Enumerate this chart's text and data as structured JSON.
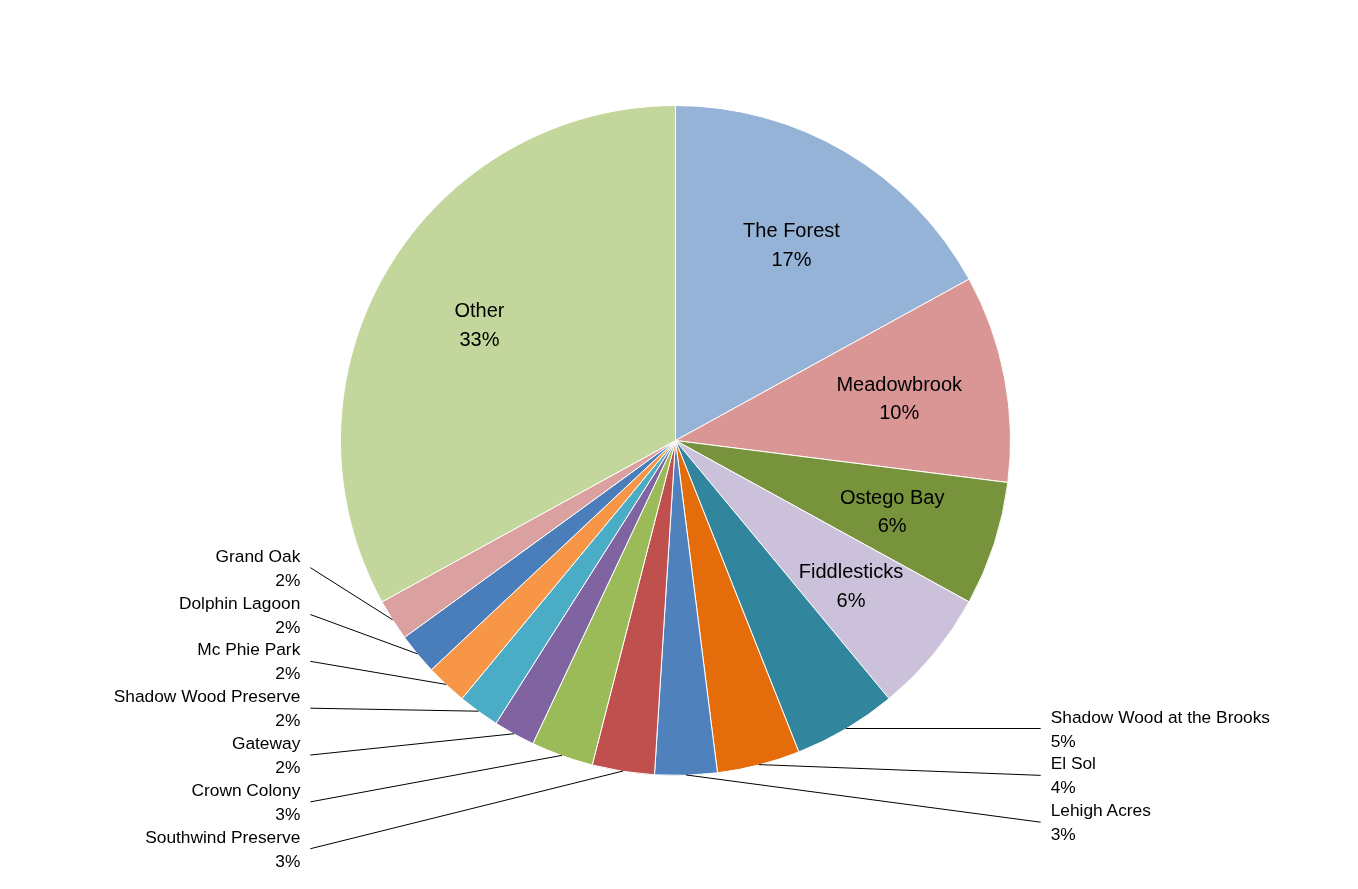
{
  "chart_data": {
    "type": "pie",
    "categories": [
      "The Forest",
      "Meadowbrook",
      "Ostego Bay",
      "Fiddlesticks",
      "Shadow Wood at the Brooks",
      "El Sol",
      "Lehigh Acres",
      "Southwind Preserve",
      "Crown Colony",
      "Gateway",
      "Shadow Wood Preserve",
      "Mc Phie Park",
      "Dolphin Lagoon",
      "Grand Oak",
      "Other"
    ],
    "values": [
      17,
      10,
      6,
      6,
      5,
      4,
      3,
      3,
      3,
      2,
      2,
      2,
      2,
      2,
      33
    ],
    "value_labels": [
      "17%",
      "10%",
      "6%",
      "6%",
      "5%",
      "4%",
      "3%",
      "3%",
      "3%",
      "2%",
      "2%",
      "2%",
      "2%",
      "2%",
      "33%"
    ],
    "colors": [
      "#95b3d7",
      "#d99694",
      "#77933c",
      "#ccc1da",
      "#31859c",
      "#e46c0a",
      "#4f81bd",
      "#c0504d",
      "#9bbb59",
      "#8064a2",
      "#4bacc6",
      "#f79646",
      "#4a7ebb",
      "#dba0a0",
      "#c3d69b"
    ]
  }
}
